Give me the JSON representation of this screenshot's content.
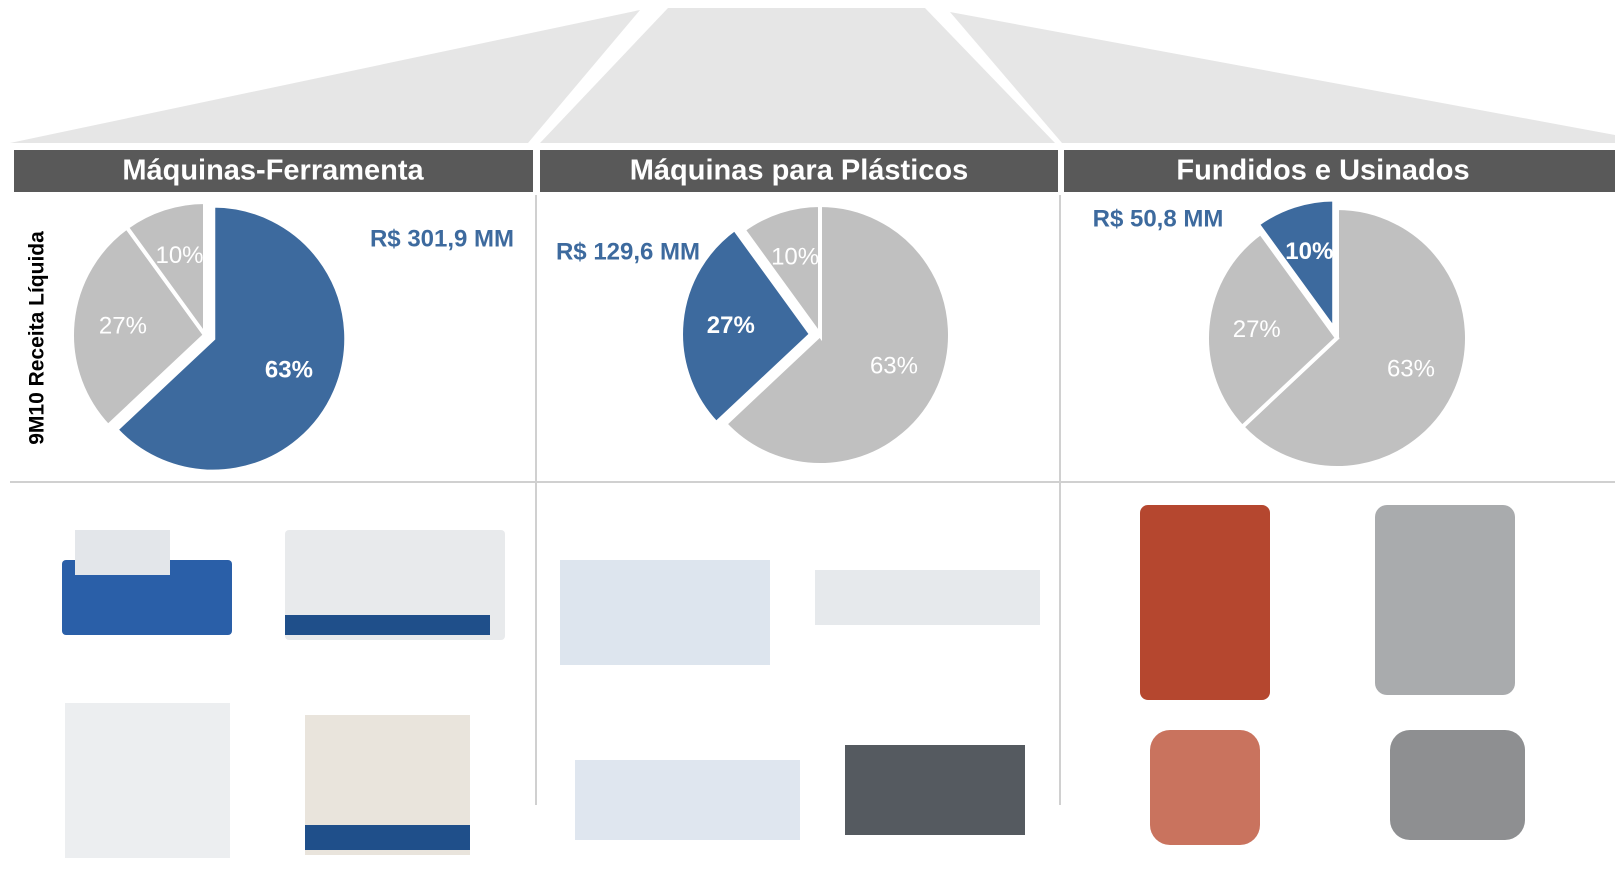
{
  "side_label": "9M10 Receita Líquida",
  "chart_data": [
    {
      "type": "pie",
      "title": "Máquinas-Ferramenta",
      "values": [
        63,
        27,
        10
      ],
      "value_labels": [
        "63%",
        "27%",
        "10%"
      ],
      "colors": [
        "#3d6a9e",
        "#c0c0c0",
        "#c0c0c0"
      ],
      "highlight": 0,
      "annotation": "R$ 301,9 MM"
    },
    {
      "type": "pie",
      "title": "Máquinas para Plásticos",
      "values": [
        63,
        27,
        10
      ],
      "value_labels": [
        "63%",
        "27%",
        "10%"
      ],
      "colors": [
        "#c0c0c0",
        "#3d6a9e",
        "#c0c0c0"
      ],
      "highlight": 1,
      "annotation": "R$ 129,6 MM"
    },
    {
      "type": "pie",
      "title": "Fundidos e Usinados",
      "values": [
        63,
        27,
        10
      ],
      "value_labels": [
        "63%",
        "27%",
        "10%"
      ],
      "colors": [
        "#c0c0c0",
        "#c0c0c0",
        "#3d6a9e"
      ],
      "highlight": 2,
      "annotation": "R$ 50,8 MM"
    }
  ]
}
